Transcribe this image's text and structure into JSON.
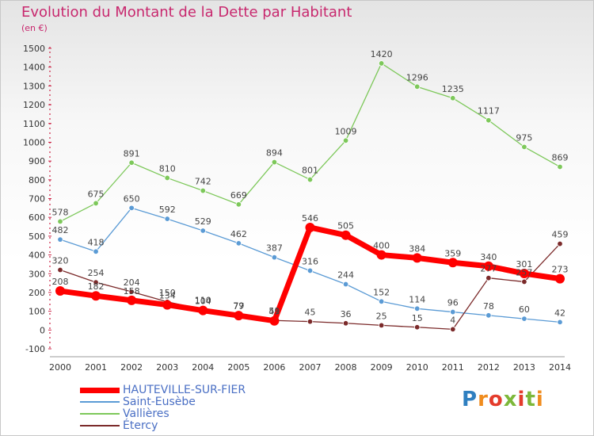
{
  "title": "Evolution du Montant de la Dette par Habitant",
  "unit_label": "(en €)",
  "logo_text": "Proxiti",
  "chart_data": {
    "type": "line",
    "x": [
      "2000",
      "2001",
      "2002",
      "2003",
      "2004",
      "2005",
      "2006",
      "2007",
      "2008",
      "2009",
      "2010",
      "2011",
      "2012",
      "2013",
      "2014"
    ],
    "ylim": [
      -100,
      1500
    ],
    "yticks": [
      -100,
      0,
      100,
      200,
      300,
      400,
      500,
      600,
      700,
      800,
      900,
      1000,
      1100,
      1200,
      1300,
      1400,
      1500
    ],
    "grid": false,
    "legend_position": "bottom-left",
    "series": [
      {
        "name": "HAUTEVILLE-SUR-FIER",
        "color": "#ff0000",
        "emphasis": true,
        "values": [
          208,
          182,
          158,
          134,
          104,
          77,
          49,
          546,
          505,
          400,
          384,
          359,
          340,
          301,
          273
        ]
      },
      {
        "name": "Saint-Eusèbe",
        "color": "#5b9bd5",
        "emphasis": false,
        "values": [
          482,
          418,
          650,
          592,
          529,
          462,
          387,
          316,
          244,
          152,
          114,
          96,
          78,
          60,
          42
        ]
      },
      {
        "name": "Vallières",
        "color": "#7dc85a",
        "emphasis": false,
        "values": [
          578,
          675,
          891,
          810,
          742,
          669,
          894,
          801,
          1009,
          1420,
          1296,
          1235,
          1117,
          975,
          869
        ]
      },
      {
        "name": "Étercy",
        "color": "#7b2a2a",
        "emphasis": false,
        "values": [
          320,
          254,
          204,
          150,
          110,
          79,
          51,
          45,
          36,
          25,
          15,
          4,
          277,
          257,
          459
        ]
      }
    ]
  }
}
